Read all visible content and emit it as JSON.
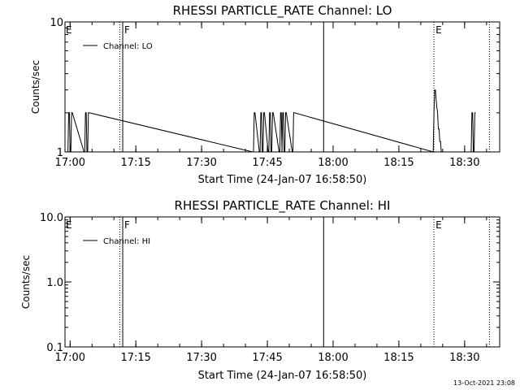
{
  "footer_timestamp": "13-Oct-2021 23:08",
  "chart_data": [
    {
      "type": "line",
      "title": "RHESSI PARTICLE_RATE Channel: LO",
      "xlabel": "Start Time (24-Jan-07 16:58:50)",
      "ylabel": "Counts/sec",
      "y_scale": "log",
      "ylim": [
        1,
        10
      ],
      "ytick_labels": [
        "1",
        "10"
      ],
      "xlim": [
        "16:58:50",
        "18:38:00"
      ],
      "xtick_labels": [
        "17:00",
        "17:15",
        "17:30",
        "17:45",
        "18:00",
        "18:15",
        "18:30"
      ],
      "legend": {
        "position": "top-left",
        "entries": [
          "Channel: LO"
        ]
      },
      "series": [
        {
          "name": "Channel: LO",
          "x": [
            "16:58:50",
            "16:59:30",
            "16:59:40",
            "16:59:50",
            "17:00:00",
            "17:00:10",
            "17:00:20",
            "17:00:30",
            "17:03:10",
            "17:03:20",
            "17:03:30",
            "17:03:40",
            "17:03:50",
            "17:04:00",
            "17:04:10",
            "17:04:20",
            "17:41:40",
            "17:41:50",
            "17:42:00",
            "17:42:10",
            "17:43:10",
            "17:43:20",
            "17:43:30",
            "17:43:40",
            "17:43:50",
            "17:44:00",
            "17:44:10",
            "17:44:20",
            "17:45:10",
            "17:45:20",
            "17:45:30",
            "17:45:40",
            "17:45:50",
            "17:46:00",
            "17:46:10",
            "17:46:20",
            "17:47:40",
            "17:47:50",
            "17:48:00",
            "17:48:10",
            "17:48:20",
            "17:48:30",
            "17:48:40",
            "17:48:50",
            "17:49:00",
            "17:49:10",
            "17:49:20",
            "17:50:40",
            "17:50:50",
            "17:51:00",
            "17:51:10",
            "18:22:50",
            "18:23:00",
            "18:23:10",
            "18:23:20",
            "18:23:30",
            "18:23:40",
            "18:23:50",
            "18:24:00",
            "18:24:10",
            "18:24:20",
            "18:24:30",
            "18:24:40",
            "18:24:50",
            "18:31:20",
            "18:31:30",
            "18:31:40",
            "18:31:50",
            "18:32:00",
            "18:32:10",
            "18:32:20",
            "18:32:30"
          ],
          "y": [
            1,
            1,
            2,
            2,
            1,
            1,
            2,
            2,
            1,
            1,
            2,
            2,
            1,
            1,
            2,
            2,
            1,
            1,
            2,
            2,
            1,
            1,
            2,
            2,
            1,
            1,
            2,
            2,
            1,
            1,
            2,
            2,
            1,
            1,
            2,
            2,
            1,
            1,
            2,
            2,
            1,
            2,
            2,
            1,
            1,
            2,
            2,
            1,
            1,
            2,
            2,
            1,
            2,
            3,
            3,
            2.5,
            2.2,
            2,
            1.5,
            1.5,
            1.2,
            1.2,
            1,
            1,
            1,
            1,
            2,
            2,
            1,
            1,
            2,
            2
          ]
        }
      ],
      "markers": [
        {
          "time": "17:11:20",
          "style": "dotted",
          "label": ""
        },
        {
          "time": "17:12:00",
          "style": "solid",
          "label": "F"
        },
        {
          "time": "17:57:50",
          "style": "solid",
          "label": ""
        },
        {
          "time": "18:23:00",
          "style": "dotted",
          "label": "E"
        },
        {
          "time": "18:35:40",
          "style": "dotted",
          "label": ""
        }
      ],
      "corner_label": "E"
    },
    {
      "type": "line",
      "title": "RHESSI PARTICLE_RATE Channel: HI",
      "xlabel": "Start Time (24-Jan-07 16:58:50)",
      "ylabel": "Counts/sec",
      "y_scale": "log",
      "ylim": [
        0.1,
        10
      ],
      "ytick_labels": [
        "0.1",
        "1.0",
        "10.0"
      ],
      "xlim": [
        "16:58:50",
        "18:38:00"
      ],
      "xtick_labels": [
        "17:00",
        "17:15",
        "17:30",
        "17:45",
        "18:00",
        "18:15",
        "18:30"
      ],
      "legend": {
        "position": "top-left",
        "entries": [
          "Channel: HI"
        ]
      },
      "series": [
        {
          "name": "Channel: HI",
          "x": [],
          "y": []
        }
      ],
      "markers": [
        {
          "time": "17:11:20",
          "style": "dotted",
          "label": ""
        },
        {
          "time": "17:12:00",
          "style": "solid",
          "label": "F"
        },
        {
          "time": "17:57:50",
          "style": "solid",
          "label": ""
        },
        {
          "time": "18:23:00",
          "style": "dotted",
          "label": "E"
        },
        {
          "time": "18:35:40",
          "style": "dotted",
          "label": ""
        }
      ],
      "corner_label": "E"
    }
  ]
}
